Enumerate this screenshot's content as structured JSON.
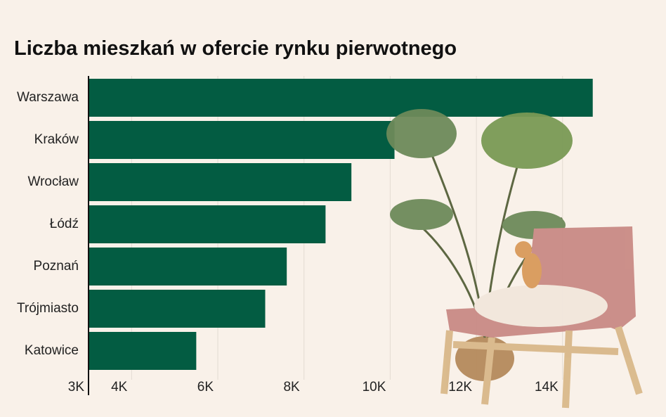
{
  "chart_data": {
    "type": "bar",
    "orientation": "horizontal",
    "title": "Liczba mieszkań w ofercie rynku pierwotnego",
    "categories": [
      "Warszawa",
      "Kraków",
      "Wrocław",
      "Łódź",
      "Poznań",
      "Trójmiasto",
      "Katowice"
    ],
    "values": [
      14700,
      10100,
      9100,
      8500,
      7600,
      7100,
      5500
    ],
    "color": "#035c42",
    "xlim": [
      3000,
      16400
    ],
    "xticks": [
      {
        "value": 3000,
        "label": "3K"
      },
      {
        "value": 4000,
        "label": "4K"
      },
      {
        "value": 6000,
        "label": "6K"
      },
      {
        "value": 8000,
        "label": "8K"
      },
      {
        "value": 10000,
        "label": "10K"
      },
      {
        "value": 12000,
        "label": "12K"
      },
      {
        "value": 14000,
        "label": "14K"
      }
    ],
    "grid": true
  }
}
